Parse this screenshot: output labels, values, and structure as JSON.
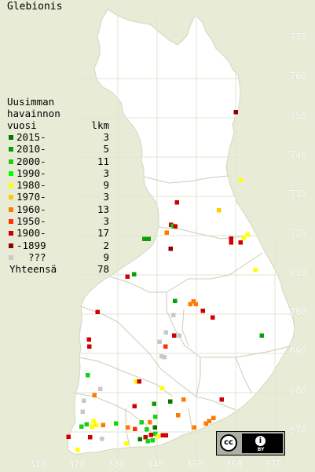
{
  "title": "Glebionis",
  "legend": {
    "header": [
      "Uusimman",
      "havainnon",
      "vuosi"
    ],
    "count_header": "lkm",
    "rows": [
      {
        "label": "2015-",
        "count": "3",
        "color": "#007800"
      },
      {
        "label": "2010-",
        "count": "5",
        "color": "#08a008"
      },
      {
        "label": "2000-",
        "count": "11",
        "color": "#18d018"
      },
      {
        "label": "1990-",
        "count": "3",
        "color": "#00ff00"
      },
      {
        "label": "1980-",
        "count": "9",
        "color": "#ffff00"
      },
      {
        "label": "1970-",
        "count": "3",
        "color": "#ffcc00"
      },
      {
        "label": "1960-",
        "count": "13",
        "color": "#ff7a00"
      },
      {
        "label": "1950-",
        "count": "3",
        "color": "#ff3000"
      },
      {
        "label": "1900-",
        "count": "17",
        "color": "#d00000"
      },
      {
        "label": "-1899",
        "count": "2",
        "color": "#900000"
      },
      {
        "label": "???",
        "count": "9",
        "color": "#c8c8c8"
      }
    ],
    "total_label": "Yhteensä",
    "total_count": "78"
  },
  "axes": {
    "x_ticks": [
      "310",
      "320",
      "330",
      "340",
      "350",
      "360",
      "370"
    ],
    "y_ticks": [
      "770",
      "760",
      "750",
      "740",
      "730",
      "720",
      "710",
      "700",
      "690",
      "680",
      "670"
    ]
  },
  "license": {
    "cc_text": "cc",
    "by_text": "BY"
  },
  "colors": {
    "background": "#e8ecd6",
    "land": "#ffffff",
    "borders": "#c9ceb8"
  },
  "observations": [
    {
      "e": 360.0,
      "n": 751.1,
      "period": "-1899"
    },
    {
      "e": 361.2,
      "n": 733.8,
      "period": "1980-"
    },
    {
      "e": 355.7,
      "n": 726.1,
      "period": "1970-"
    },
    {
      "e": 345.0,
      "n": 728.1,
      "period": "1900-"
    },
    {
      "e": 343.5,
      "n": 722.4,
      "period": "1900-"
    },
    {
      "e": 344.0,
      "n": 722.1,
      "period": "2000-"
    },
    {
      "e": 344.6,
      "n": 722.0,
      "period": "1900-"
    },
    {
      "e": 342.4,
      "n": 720.4,
      "period": "1960-"
    },
    {
      "e": 337.8,
      "n": 718.8,
      "period": "2010-"
    },
    {
      "e": 336.7,
      "n": 718.8,
      "period": "2010-"
    },
    {
      "e": 343.4,
      "n": 716.3,
      "period": "-1899"
    },
    {
      "e": 358.8,
      "n": 718.9,
      "period": "1900-"
    },
    {
      "e": 358.8,
      "n": 717.9,
      "period": "1900-"
    },
    {
      "e": 362.0,
      "n": 719.1,
      "period": "1980-"
    },
    {
      "e": 363.0,
      "n": 719.9,
      "period": "1980-"
    },
    {
      "e": 361.2,
      "n": 717.9,
      "period": "1900-"
    },
    {
      "e": 365.0,
      "n": 710.9,
      "period": "1980-"
    },
    {
      "e": 332.4,
      "n": 709.2,
      "period": "1900-"
    },
    {
      "e": 334.1,
      "n": 709.8,
      "period": "2010-"
    },
    {
      "e": 344.5,
      "n": 703.0,
      "period": "2010-"
    },
    {
      "e": 349.2,
      "n": 702.9,
      "period": "1960-"
    },
    {
      "e": 348.4,
      "n": 702.2,
      "period": "1960-"
    },
    {
      "e": 349.8,
      "n": 702.2,
      "period": "1960-"
    },
    {
      "e": 351.6,
      "n": 700.5,
      "period": "1900-"
    },
    {
      "e": 354.1,
      "n": 698.8,
      "period": "1900-"
    },
    {
      "e": 344.1,
      "n": 699.4,
      "period": "???"
    },
    {
      "e": 366.6,
      "n": 694.2,
      "period": "2010-"
    },
    {
      "e": 324.8,
      "n": 700.2,
      "period": "1900-"
    },
    {
      "e": 322.6,
      "n": 693.2,
      "period": "1900-"
    },
    {
      "e": 322.7,
      "n": 691.4,
      "period": "1900-"
    },
    {
      "e": 342.2,
      "n": 695.0,
      "period": "???"
    },
    {
      "e": 344.3,
      "n": 694.2,
      "period": "1900-"
    },
    {
      "e": 345.6,
      "n": 694.2,
      "period": "???"
    },
    {
      "e": 340.6,
      "n": 692.6,
      "period": "???"
    },
    {
      "e": 342.1,
      "n": 691.4,
      "period": "1950-"
    },
    {
      "e": 341.1,
      "n": 688.9,
      "period": "???"
    },
    {
      "e": 341.8,
      "n": 688.7,
      "period": "???"
    },
    {
      "e": 322.3,
      "n": 684.1,
      "period": "2000-"
    },
    {
      "e": 334.5,
      "n": 682.5,
      "period": "1980-"
    },
    {
      "e": 335.4,
      "n": 682.5,
      "period": "1900-"
    },
    {
      "e": 341.2,
      "n": 680.8,
      "period": "1980-"
    },
    {
      "e": 325.5,
      "n": 680.6,
      "period": "???"
    },
    {
      "e": 324.0,
      "n": 679.0,
      "period": "1960-"
    },
    {
      "e": 321.3,
      "n": 677.6,
      "period": "???"
    },
    {
      "e": 334.2,
      "n": 676.2,
      "period": "1900-"
    },
    {
      "e": 339.2,
      "n": 676.8,
      "period": "2010-"
    },
    {
      "e": 343.3,
      "n": 677.4,
      "period": "2015-"
    },
    {
      "e": 346.7,
      "n": 677.9,
      "period": "1960-"
    },
    {
      "e": 356.4,
      "n": 677.9,
      "period": "1900-"
    },
    {
      "e": 345.3,
      "n": 673.9,
      "period": "1960-"
    },
    {
      "e": 339.5,
      "n": 673.5,
      "period": "2000-"
    },
    {
      "e": 338.1,
      "n": 672.1,
      "period": "1960-"
    },
    {
      "e": 336.0,
      "n": 672.1,
      "period": "2000-"
    },
    {
      "e": 329.5,
      "n": 671.8,
      "period": "2000-"
    },
    {
      "e": 326.2,
      "n": 671.4,
      "period": "1960-"
    },
    {
      "e": 322.0,
      "n": 671.6,
      "period": "2000-"
    },
    {
      "e": 323.4,
      "n": 671.0,
      "period": "1980-"
    },
    {
      "e": 324.5,
      "n": 671.4,
      "period": "1980-"
    },
    {
      "e": 321.0,
      "n": 674.8,
      "period": "???"
    },
    {
      "e": 323.8,
      "n": 672.4,
      "period": "1980-"
    },
    {
      "e": 320.7,
      "n": 671.0,
      "period": "2000-"
    },
    {
      "e": 332.5,
      "n": 670.8,
      "period": "1960-"
    },
    {
      "e": 334.3,
      "n": 670.4,
      "period": "1950-"
    },
    {
      "e": 337.3,
      "n": 670.3,
      "period": "2000-"
    },
    {
      "e": 339.4,
      "n": 670.8,
      "period": "2015-"
    },
    {
      "e": 339.5,
      "n": 669.2,
      "period": "2000-"
    },
    {
      "e": 338.4,
      "n": 668.9,
      "period": "1900-"
    },
    {
      "e": 337.0,
      "n": 668.3,
      "period": "1900-"
    },
    {
      "e": 335.6,
      "n": 667.8,
      "period": "2015-"
    },
    {
      "e": 337.6,
      "n": 667.3,
      "period": "2000-"
    },
    {
      "e": 338.8,
      "n": 667.5,
      "period": "2000-"
    },
    {
      "e": 340.2,
      "n": 668.5,
      "period": "1980-"
    },
    {
      "e": 341.4,
      "n": 668.8,
      "period": "1900-"
    },
    {
      "e": 342.2,
      "n": 668.8,
      "period": "1900-"
    },
    {
      "e": 349.4,
      "n": 670.8,
      "period": "1960-"
    },
    {
      "e": 352.4,
      "n": 671.8,
      "period": "1960-"
    },
    {
      "e": 353.2,
      "n": 672.4,
      "period": "1960-"
    },
    {
      "e": 354.3,
      "n": 673.2,
      "period": "1960-"
    },
    {
      "e": 317.4,
      "n": 668.4,
      "period": "1900-"
    },
    {
      "e": 322.9,
      "n": 668.3,
      "period": "1900-"
    },
    {
      "e": 325.9,
      "n": 667.9,
      "period": "???"
    },
    {
      "e": 332.1,
      "n": 666.7,
      "period": "1980-"
    },
    {
      "e": 319.7,
      "n": 665.1,
      "period": "1980-"
    }
  ]
}
